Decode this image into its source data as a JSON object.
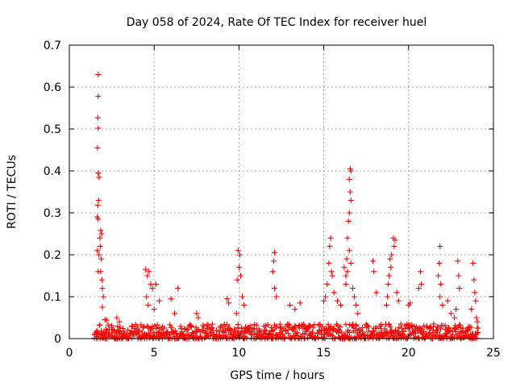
{
  "chart_data": {
    "type": "scatter",
    "title": "Day 058 of 2024, Rate Of TEC Index for receiver huel",
    "xlabel": "GPS time / hours",
    "ylabel": "ROTI / TECUs",
    "xlim": [
      0,
      25
    ],
    "ylim": [
      0,
      0.7
    ],
    "x_ticks": [
      0,
      5,
      10,
      15,
      20,
      25
    ],
    "y_ticks": [
      0,
      0.1,
      0.2,
      0.3,
      0.4,
      0.5,
      0.6,
      0.7
    ],
    "x_tick_labels": [
      "0",
      "5",
      "10",
      "15",
      "20",
      "25"
    ],
    "y_tick_labels": [
      "0",
      "0.1",
      "0.2",
      "0.3",
      "0.4",
      "0.5",
      "0.6",
      "0.7"
    ],
    "grid": true,
    "marker": "+",
    "series": [
      {
        "name": "ROTI",
        "color": "#ff0000",
        "points": [
          [
            1.7,
            0.63
          ],
          [
            1.7,
            0.578
          ],
          [
            1.68,
            0.527
          ],
          [
            1.7,
            0.502
          ],
          [
            1.66,
            0.455
          ],
          [
            1.7,
            0.395
          ],
          [
            1.75,
            0.385
          ],
          [
            1.72,
            0.33
          ],
          [
            1.68,
            0.318
          ],
          [
            1.64,
            0.29
          ],
          [
            1.7,
            0.285
          ],
          [
            1.85,
            0.258
          ],
          [
            1.9,
            0.25
          ],
          [
            1.8,
            0.24
          ],
          [
            1.82,
            0.22
          ],
          [
            1.65,
            0.21
          ],
          [
            1.75,
            0.2
          ],
          [
            1.88,
            0.19
          ],
          [
            1.7,
            0.16
          ],
          [
            1.85,
            0.16
          ],
          [
            1.92,
            0.14
          ],
          [
            1.95,
            0.12
          ],
          [
            2.0,
            0.1
          ],
          [
            1.95,
            0.075
          ],
          [
            2.1,
            0.045
          ],
          [
            2.2,
            0.044
          ],
          [
            2.8,
            0.05
          ],
          [
            2.95,
            0.04
          ],
          [
            4.5,
            0.165
          ],
          [
            4.6,
            0.15
          ],
          [
            4.7,
            0.16
          ],
          [
            4.8,
            0.13
          ],
          [
            4.55,
            0.1
          ],
          [
            4.65,
            0.08
          ],
          [
            4.9,
            0.12
          ],
          [
            5.1,
            0.13
          ],
          [
            5.3,
            0.09
          ],
          [
            5.0,
            0.07
          ],
          [
            6.0,
            0.095
          ],
          [
            6.2,
            0.06
          ],
          [
            6.4,
            0.12
          ],
          [
            7.5,
            0.06
          ],
          [
            7.6,
            0.05
          ],
          [
            9.3,
            0.095
          ],
          [
            9.4,
            0.085
          ],
          [
            9.95,
            0.21
          ],
          [
            10.05,
            0.2
          ],
          [
            10.0,
            0.17
          ],
          [
            9.9,
            0.14
          ],
          [
            10.1,
            0.15
          ],
          [
            10.2,
            0.1
          ],
          [
            10.3,
            0.08
          ],
          [
            9.85,
            0.06
          ],
          [
            12.1,
            0.205
          ],
          [
            12.05,
            0.185
          ],
          [
            12.0,
            0.16
          ],
          [
            12.1,
            0.12
          ],
          [
            12.2,
            0.1
          ],
          [
            13.0,
            0.08
          ],
          [
            13.3,
            0.07
          ],
          [
            13.6,
            0.085
          ],
          [
            15.4,
            0.24
          ],
          [
            15.35,
            0.22
          ],
          [
            15.3,
            0.18
          ],
          [
            15.45,
            0.16
          ],
          [
            15.2,
            0.13
          ],
          [
            15.5,
            0.15
          ],
          [
            15.1,
            0.1
          ],
          [
            15.0,
            0.09
          ],
          [
            15.6,
            0.11
          ],
          [
            15.8,
            0.09
          ],
          [
            16.0,
            0.08
          ],
          [
            16.2,
            0.17
          ],
          [
            16.3,
            0.15
          ],
          [
            16.55,
            0.405
          ],
          [
            16.6,
            0.4
          ],
          [
            16.5,
            0.38
          ],
          [
            16.55,
            0.35
          ],
          [
            16.6,
            0.33
          ],
          [
            16.5,
            0.3
          ],
          [
            16.45,
            0.28
          ],
          [
            16.4,
            0.24
          ],
          [
            16.5,
            0.21
          ],
          [
            16.35,
            0.19
          ],
          [
            16.6,
            0.18
          ],
          [
            16.4,
            0.16
          ],
          [
            16.3,
            0.13
          ],
          [
            16.7,
            0.12
          ],
          [
            16.8,
            0.1
          ],
          [
            16.9,
            0.08
          ],
          [
            17.0,
            0.06
          ],
          [
            17.9,
            0.185
          ],
          [
            17.95,
            0.16
          ],
          [
            18.1,
            0.11
          ],
          [
            19.1,
            0.24
          ],
          [
            19.2,
            0.235
          ],
          [
            19.15,
            0.22
          ],
          [
            19.0,
            0.2
          ],
          [
            18.9,
            0.19
          ],
          [
            18.95,
            0.17
          ],
          [
            18.85,
            0.15
          ],
          [
            18.8,
            0.13
          ],
          [
            18.75,
            0.1
          ],
          [
            19.3,
            0.11
          ],
          [
            19.4,
            0.09
          ],
          [
            18.7,
            0.08
          ],
          [
            20.0,
            0.08
          ],
          [
            20.1,
            0.085
          ],
          [
            20.7,
            0.16
          ],
          [
            20.75,
            0.13
          ],
          [
            20.6,
            0.12
          ],
          [
            21.85,
            0.22
          ],
          [
            21.8,
            0.18
          ],
          [
            21.75,
            0.15
          ],
          [
            21.9,
            0.13
          ],
          [
            21.85,
            0.1
          ],
          [
            22.0,
            0.08
          ],
          [
            22.3,
            0.09
          ],
          [
            22.5,
            0.06
          ],
          [
            22.9,
            0.185
          ],
          [
            22.95,
            0.15
          ],
          [
            23.0,
            0.12
          ],
          [
            22.8,
            0.07
          ],
          [
            22.7,
            0.05
          ],
          [
            23.8,
            0.18
          ],
          [
            23.85,
            0.14
          ],
          [
            23.9,
            0.11
          ],
          [
            23.95,
            0.09
          ],
          [
            23.7,
            0.07
          ],
          [
            24.0,
            0.05
          ],
          [
            24.05,
            0.04
          ]
        ],
        "baseline": {
          "x_start": 1.5,
          "x_end": 24.1,
          "x_step": 0.08,
          "typical_max": 0.035,
          "typical_min": 0.0
        }
      }
    ]
  }
}
